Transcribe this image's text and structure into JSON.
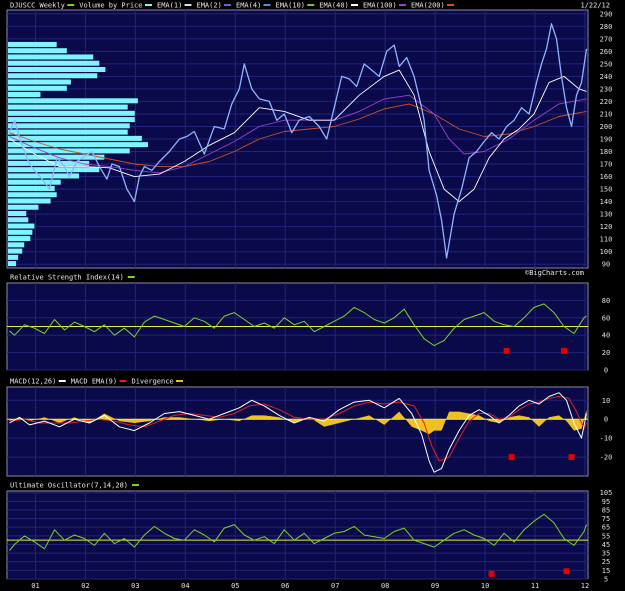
{
  "colors": {
    "background": "#000000",
    "panel": "#0a0a4a",
    "grid": "#22237a",
    "border": "#8a8aa8",
    "price": "#8fb4ff",
    "ema1": "#d8d8ff",
    "ema2": "#5a6ad8",
    "ema4": "#4d8fe0",
    "ema10": "#7fbf3f",
    "ema40": "#ffffff",
    "ema100": "#9a3fd0",
    "ema200": "#d0502a",
    "volume_bars": "#7ff4ff",
    "indicator": "#7fd12a",
    "reference": "#e6ef3a",
    "macd_line": "#ffffff",
    "macd_signal": "#e02020",
    "divergence": "#f0c020",
    "signal_marker": "#e00000"
  },
  "header": {
    "date": "1/22/12",
    "watermark": "©BigCharts.com"
  },
  "price_legend": [
    {
      "label": "DJUSCC Weekly",
      "color": "#7fd12a"
    },
    {
      "label": "Volume by Price",
      "color": "#7ff4ff"
    },
    {
      "label": "EMA(1)",
      "color": "#d8d8ff"
    },
    {
      "label": "EMA(2)",
      "color": "#5a6ad8"
    },
    {
      "label": "EMA(4)",
      "color": "#4d8fe0"
    },
    {
      "label": "EMA(10)",
      "color": "#7fbf3f"
    },
    {
      "label": "EMA(40)",
      "color": "#ffffff"
    },
    {
      "label": "EMA(100)",
      "color": "#9a3fd0"
    },
    {
      "label": "EMA(200)",
      "color": "#d0502a"
    }
  ],
  "rsi_legend": {
    "label": "Relative Strength Index(14)",
    "color": "#7fd12a"
  },
  "macd_legend": [
    {
      "label": "MACD(12,26)",
      "color": "#ffffff"
    },
    {
      "label": "MACD EMA(9)",
      "color": "#e02020"
    },
    {
      "label": "Divergence",
      "color": "#f0c020"
    }
  ],
  "uo_legend": {
    "label": "Ultimate Oscillator(7,14,28)",
    "color": "#7fd12a"
  },
  "chart_data": [
    {
      "type": "line",
      "panel": "price",
      "title": "DJUSCC Weekly",
      "ylim": [
        87,
        293
      ],
      "y_ticks": [
        90,
        100,
        110,
        120,
        130,
        140,
        150,
        160,
        170,
        180,
        190,
        200,
        210,
        220,
        230,
        240,
        250,
        260,
        270,
        280,
        290
      ],
      "x_ticks": [
        "01",
        "02",
        "03",
        "04",
        "05",
        "06",
        "07",
        "08",
        "09",
        "10",
        "11",
        "12"
      ],
      "xlim": [
        2000.45,
        2012.08
      ],
      "series": [
        {
          "name": "DJUSCC Weekly",
          "x": [
            2000.5,
            2000.6,
            2000.75,
            2000.9,
            2001.0,
            2001.15,
            2001.3,
            2001.45,
            2001.6,
            2001.7,
            2001.85,
            2002.0,
            2002.15,
            2002.3,
            2002.45,
            2002.55,
            2002.7,
            2002.85,
            2003.0,
            2003.1,
            2003.2,
            2003.35,
            2003.5,
            2003.7,
            2003.9,
            2004.05,
            2004.2,
            2004.4,
            2004.6,
            2004.8,
            2004.95,
            2005.1,
            2005.2,
            2005.35,
            2005.5,
            2005.7,
            2005.85,
            2006.0,
            2006.15,
            2006.3,
            2006.5,
            2006.7,
            2006.85,
            2007.0,
            2007.15,
            2007.3,
            2007.45,
            2007.6,
            2007.75,
            2007.9,
            2008.05,
            2008.2,
            2008.3,
            2008.45,
            2008.6,
            2008.75,
            2008.8,
            2008.9,
            2009.05,
            2009.15,
            2009.25,
            2009.4,
            2009.55,
            2009.7,
            2009.85,
            2010.0,
            2010.15,
            2010.3,
            2010.45,
            2010.6,
            2010.75,
            2010.9,
            2011.05,
            2011.15,
            2011.25,
            2011.35,
            2011.45,
            2011.55,
            2011.65,
            2011.75,
            2011.85,
            2011.95,
            2012.05
          ],
          "y": [
            195,
            205,
            185,
            170,
            165,
            158,
            150,
            175,
            168,
            160,
            172,
            176,
            180,
            168,
            158,
            170,
            168,
            150,
            140,
            160,
            168,
            165,
            172,
            180,
            190,
            192,
            196,
            178,
            200,
            198,
            218,
            230,
            250,
            230,
            222,
            220,
            205,
            210,
            195,
            205,
            208,
            200,
            190,
            215,
            240,
            238,
            232,
            250,
            245,
            240,
            260,
            265,
            248,
            255,
            240,
            215,
            205,
            165,
            145,
            125,
            95,
            130,
            150,
            175,
            180,
            188,
            195,
            190,
            200,
            205,
            215,
            210,
            235,
            250,
            262,
            282,
            270,
            240,
            215,
            200,
            225,
            235,
            262
          ]
        },
        {
          "name": "EMA(40)",
          "x": [
            2000.5,
            2001.0,
            2001.5,
            2002.0,
            2002.5,
            2003.0,
            2003.5,
            2004.0,
            2004.5,
            2005.0,
            2005.5,
            2006.0,
            2006.5,
            2007.0,
            2007.5,
            2008.0,
            2008.3,
            2008.6,
            2008.9,
            2009.2,
            2009.5,
            2009.8,
            2010.1,
            2010.4,
            2010.7,
            2011.0,
            2011.3,
            2011.6,
            2011.9,
            2012.05
          ],
          "y": [
            190,
            178,
            168,
            168,
            167,
            160,
            162,
            172,
            185,
            195,
            215,
            212,
            205,
            205,
            225,
            240,
            245,
            225,
            180,
            150,
            140,
            150,
            175,
            190,
            198,
            210,
            235,
            240,
            230,
            228
          ]
        },
        {
          "name": "EMA(100)",
          "x": [
            2000.5,
            2001.0,
            2001.5,
            2002.0,
            2002.5,
            2003.0,
            2003.5,
            2004.0,
            2004.5,
            2005.0,
            2005.5,
            2006.0,
            2006.5,
            2007.0,
            2007.5,
            2008.0,
            2008.5,
            2009.0,
            2009.3,
            2009.6,
            2010.0,
            2010.5,
            2011.0,
            2011.5,
            2012.05
          ],
          "y": [
            192,
            183,
            175,
            170,
            168,
            165,
            163,
            168,
            178,
            188,
            200,
            205,
            205,
            205,
            212,
            222,
            225,
            210,
            190,
            178,
            180,
            190,
            205,
            218,
            222
          ]
        },
        {
          "name": "EMA(200)",
          "x": [
            2000.5,
            2001.0,
            2001.5,
            2002.0,
            2002.5,
            2003.0,
            2003.5,
            2004.0,
            2004.5,
            2005.0,
            2005.5,
            2006.0,
            2006.5,
            2007.0,
            2007.5,
            2008.0,
            2008.5,
            2009.0,
            2009.5,
            2010.0,
            2010.5,
            2011.0,
            2011.5,
            2012.05
          ],
          "y": [
            195,
            188,
            182,
            178,
            174,
            170,
            168,
            168,
            172,
            180,
            190,
            196,
            198,
            200,
            206,
            214,
            218,
            210,
            198,
            192,
            194,
            200,
            208,
            212
          ]
        }
      ],
      "volume_by_price": {
        "price_levels": [
          90,
          95,
          100,
          105,
          110,
          115,
          120,
          125,
          130,
          135,
          140,
          145,
          150,
          155,
          160,
          165,
          170,
          175,
          180,
          185,
          190,
          195,
          200,
          205,
          210,
          215,
          220,
          225,
          230,
          235,
          240,
          245,
          250,
          255,
          260,
          265
        ],
        "values": [
          8,
          10,
          14,
          16,
          22,
          24,
          26,
          20,
          18,
          30,
          42,
          48,
          46,
          52,
          70,
          90,
          80,
          95,
          120,
          138,
          132,
          118,
          120,
          125,
          125,
          118,
          128,
          32,
          58,
          62,
          88,
          96,
          90,
          84,
          58,
          48
        ]
      }
    },
    {
      "type": "line",
      "panel": "rsi",
      "title": "Relative Strength Index(14)",
      "ylim": [
        0,
        100
      ],
      "y_ticks": [
        0,
        20,
        40,
        60,
        80
      ],
      "reference": 50,
      "x": [
        2000.5,
        2000.6,
        2000.8,
        2001.0,
        2001.2,
        2001.4,
        2001.6,
        2001.8,
        2002.0,
        2002.2,
        2002.4,
        2002.6,
        2002.8,
        2003.0,
        2003.2,
        2003.4,
        2003.6,
        2003.8,
        2004.0,
        2004.2,
        2004.4,
        2004.6,
        2004.8,
        2005.0,
        2005.2,
        2005.4,
        2005.6,
        2005.8,
        2006.0,
        2006.2,
        2006.4,
        2006.6,
        2006.8,
        2007.0,
        2007.2,
        2007.4,
        2007.6,
        2007.8,
        2008.0,
        2008.2,
        2008.4,
        2008.6,
        2008.8,
        2009.0,
        2009.2,
        2009.4,
        2009.6,
        2009.8,
        2010.0,
        2010.2,
        2010.4,
        2010.6,
        2010.8,
        2011.0,
        2011.2,
        2011.4,
        2011.6,
        2011.8,
        2012.0,
        2012.05
      ],
      "y": [
        45,
        40,
        52,
        48,
        42,
        58,
        46,
        55,
        50,
        44,
        52,
        40,
        48,
        38,
        55,
        62,
        58,
        54,
        50,
        60,
        56,
        48,
        62,
        66,
        58,
        50,
        54,
        48,
        60,
        52,
        56,
        44,
        50,
        56,
        62,
        72,
        66,
        58,
        54,
        60,
        70,
        52,
        36,
        28,
        34,
        48,
        58,
        62,
        66,
        56,
        52,
        50,
        60,
        72,
        76,
        66,
        50,
        42,
        60,
        62
      ],
      "signals": [
        {
          "x": 2010.45,
          "y": 22
        },
        {
          "x": 2011.6,
          "y": 22
        }
      ]
    },
    {
      "type": "line",
      "panel": "macd",
      "title": "MACD(12,26)",
      "ylim": [
        -30,
        17
      ],
      "y_ticks": [
        -20,
        -10,
        0,
        10
      ],
      "series": [
        {
          "name": "MACD(12,26)",
          "x": [
            2000.5,
            2000.7,
            2000.9,
            2001.2,
            2001.5,
            2001.8,
            2002.1,
            2002.4,
            2002.7,
            2003.0,
            2003.3,
            2003.6,
            2003.9,
            2004.2,
            2004.5,
            2004.8,
            2005.1,
            2005.35,
            2005.6,
            2005.9,
            2006.2,
            2006.5,
            2006.8,
            2007.1,
            2007.4,
            2007.7,
            2008.0,
            2008.3,
            2008.55,
            2008.75,
            2008.9,
            2009.0,
            2009.15,
            2009.3,
            2009.5,
            2009.7,
            2009.9,
            2010.1,
            2010.3,
            2010.5,
            2010.7,
            2010.9,
            2011.1,
            2011.3,
            2011.5,
            2011.65,
            2011.8,
            2011.95,
            2012.05
          ],
          "y": [
            -2,
            1,
            -3,
            -1,
            -4,
            0,
            -2,
            2,
            -4,
            -6,
            -2,
            3,
            4,
            2,
            0,
            3,
            6,
            10,
            7,
            2,
            -2,
            1,
            -1,
            5,
            9,
            10,
            6,
            11,
            3,
            -8,
            -22,
            -28,
            -26,
            -16,
            -6,
            2,
            5,
            2,
            -2,
            2,
            7,
            10,
            8,
            12,
            14,
            10,
            -2,
            -10,
            3
          ]
        },
        {
          "name": "MACD EMA(9)",
          "x": [
            2000.5,
            2000.8,
            2001.1,
            2001.4,
            2001.7,
            2002.0,
            2002.3,
            2002.6,
            2002.9,
            2003.2,
            2003.5,
            2003.8,
            2004.1,
            2004.4,
            2004.7,
            2005.0,
            2005.3,
            2005.6,
            2005.9,
            2006.2,
            2006.5,
            2006.8,
            2007.1,
            2007.4,
            2007.7,
            2008.0,
            2008.3,
            2008.6,
            2008.8,
            2008.95,
            2009.1,
            2009.3,
            2009.5,
            2009.7,
            2009.9,
            2010.1,
            2010.3,
            2010.5,
            2010.7,
            2010.9,
            2011.1,
            2011.3,
            2011.5,
            2011.7,
            2011.85,
            2012.0,
            2012.05
          ],
          "y": [
            -1,
            0,
            -2,
            -2,
            -2,
            -1,
            0,
            -1,
            -3,
            -4,
            -1,
            2,
            3,
            2,
            1,
            3,
            7,
            8,
            5,
            1,
            0,
            0,
            3,
            7,
            9,
            8,
            9,
            7,
            -2,
            -14,
            -22,
            -20,
            -10,
            -1,
            3,
            3,
            0,
            1,
            5,
            8,
            9,
            11,
            12,
            11,
            4,
            -5,
            -2
          ]
        }
      ],
      "divergence": {
        "x": [
          2000.5,
          2000.7,
          2000.9,
          2001.2,
          2001.5,
          2001.8,
          2002.1,
          2002.4,
          2002.7,
          2003.0,
          2003.3,
          2003.6,
          2003.9,
          2004.2,
          2004.5,
          2004.8,
          2005.1,
          2005.35,
          2005.6,
          2005.9,
          2006.2,
          2006.5,
          2006.8,
          2007.1,
          2007.4,
          2007.7,
          2008.0,
          2008.3,
          2008.55,
          2008.75,
          2008.9,
          2009.0,
          2009.15,
          2009.3,
          2009.5,
          2009.7,
          2009.9,
          2010.1,
          2010.3,
          2010.5,
          2010.7,
          2010.9,
          2011.1,
          2011.3,
          2011.5,
          2011.65,
          2011.8,
          2011.95,
          2012.05
        ],
        "y": [
          -1,
          1,
          -1,
          1,
          -2,
          1,
          -2,
          3,
          -1,
          -2,
          -1,
          1,
          1,
          0,
          -1,
          0,
          -1,
          2,
          2,
          1,
          -2,
          1,
          -4,
          -2,
          0,
          2,
          -3,
          4,
          -4,
          -6,
          -8,
          -6,
          -6,
          4,
          4,
          3,
          2,
          -1,
          -2,
          1,
          2,
          1,
          -4,
          1,
          2,
          -1,
          -6,
          -5,
          5
        ]
      },
      "signals": [
        {
          "x": 2010.55,
          "y": -20
        },
        {
          "x": 2011.75,
          "y": -20
        }
      ]
    },
    {
      "type": "line",
      "panel": "uo",
      "title": "Ultimate Oscillator(7,14,28)",
      "ylim": [
        5,
        107
      ],
      "y_ticks": [
        5,
        15,
        25,
        35,
        45,
        55,
        65,
        75,
        85,
        95,
        105
      ],
      "reference": 50,
      "x": [
        2000.5,
        2000.6,
        2000.8,
        2001.0,
        2001.2,
        2001.4,
        2001.6,
        2001.8,
        2002.0,
        2002.2,
        2002.4,
        2002.6,
        2002.8,
        2003.0,
        2003.2,
        2003.4,
        2003.6,
        2003.8,
        2004.0,
        2004.2,
        2004.4,
        2004.6,
        2004.8,
        2005.0,
        2005.2,
        2005.4,
        2005.6,
        2005.8,
        2006.0,
        2006.2,
        2006.4,
        2006.6,
        2006.8,
        2007.0,
        2007.2,
        2007.4,
        2007.6,
        2007.8,
        2008.0,
        2008.2,
        2008.4,
        2008.6,
        2008.8,
        2009.0,
        2009.2,
        2009.4,
        2009.6,
        2009.8,
        2010.0,
        2010.2,
        2010.4,
        2010.6,
        2010.8,
        2011.0,
        2011.2,
        2011.4,
        2011.6,
        2011.8,
        2012.0,
        2012.05
      ],
      "y": [
        38,
        45,
        55,
        48,
        40,
        62,
        50,
        56,
        52,
        44,
        58,
        46,
        52,
        42,
        56,
        66,
        58,
        52,
        50,
        62,
        56,
        48,
        64,
        68,
        56,
        50,
        54,
        46,
        62,
        50,
        58,
        46,
        52,
        58,
        60,
        66,
        56,
        54,
        52,
        60,
        64,
        50,
        46,
        42,
        50,
        58,
        62,
        56,
        52,
        44,
        58,
        48,
        62,
        72,
        80,
        70,
        52,
        44,
        60,
        68
      ],
      "signals": [
        {
          "x": 2010.15,
          "y": 11
        },
        {
          "x": 2011.65,
          "y": 14
        }
      ]
    }
  ]
}
